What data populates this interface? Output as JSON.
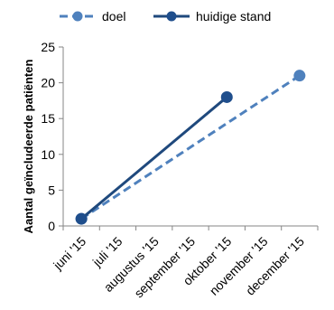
{
  "chart_data": {
    "type": "line",
    "categories": [
      "juni '15",
      "juli '15",
      "augustus '15",
      "september '15",
      "oktober '15",
      "november '15",
      "december '15"
    ],
    "series": [
      {
        "name": "doel",
        "values": [
          1,
          null,
          null,
          null,
          null,
          null,
          21
        ],
        "color": "#4f81bd",
        "line_style": "dashed",
        "marker_color": "#4f81bd"
      },
      {
        "name": "huidige stand",
        "values": [
          1,
          null,
          null,
          null,
          18,
          null,
          null
        ],
        "color": "#1f497d",
        "line_style": "solid",
        "marker_color": "#1f4e8c"
      }
    ],
    "title": "",
    "xlabel": "",
    "ylabel": "Aantal geïncludeerde patiënten",
    "ylim": [
      0,
      25
    ],
    "yticks": [
      0,
      5,
      10,
      15,
      20,
      25
    ],
    "grid": false,
    "legend_position": "top"
  }
}
